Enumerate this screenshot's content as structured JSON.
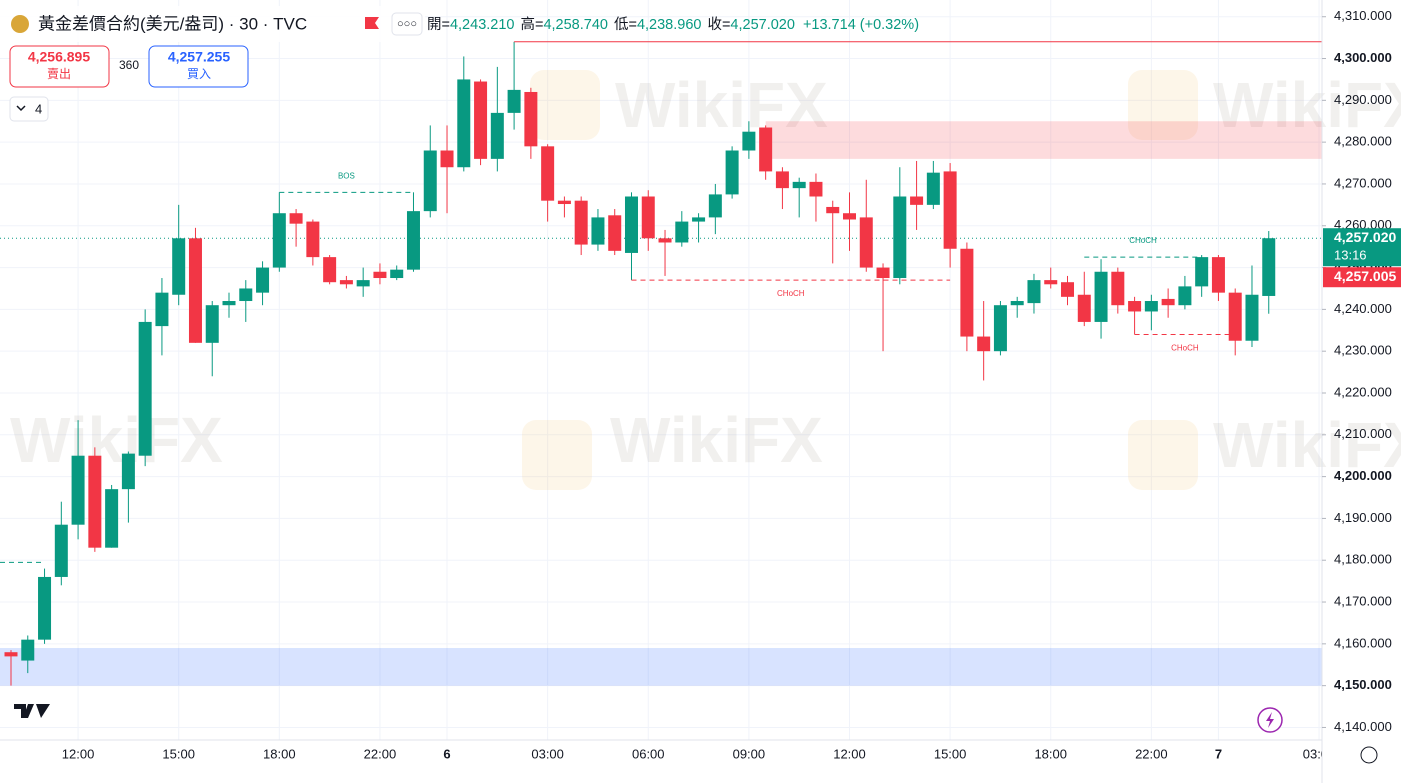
{
  "chart_data": {
    "type": "candlestick",
    "title": "黃金差價合約(美元/盎司) · 30 · TVC",
    "ohlc_header": [
      {
        "label": "開=",
        "value": "4,243.210"
      },
      {
        "label": "高=",
        "value": "4,258.740"
      },
      {
        "label": "低=",
        "value": "4,238.960"
      },
      {
        "label": "收=",
        "value": "4,257.020"
      }
    ],
    "change": "+13.714 (+0.32%)",
    "sell": {
      "price": "4,256.895",
      "label": "賣出"
    },
    "spread": "360",
    "buy": {
      "price": "4,257.255",
      "label": "買入"
    },
    "indicator_count": "4",
    "watermark": "WikiFX",
    "up_color": "#089981",
    "down_color": "#f23645",
    "categories": [
      null,
      null,
      null,
      null,
      "12:00",
      null,
      null,
      null,
      null,
      null,
      "15:00",
      null,
      null,
      null,
      null,
      null,
      "18:00",
      null,
      null,
      null,
      null,
      null,
      "22:00",
      null,
      null,
      null,
      "6",
      null,
      null,
      null,
      null,
      null,
      "03:00",
      null,
      null,
      null,
      null,
      null,
      "06:00",
      null,
      null,
      null,
      null,
      null,
      "09:00",
      null,
      null,
      null,
      null,
      null,
      "12:00",
      null,
      null,
      null,
      null,
      null,
      "15:00",
      null,
      null,
      null,
      null,
      null,
      "18:00",
      null,
      null,
      null,
      null,
      null,
      "22:00",
      null,
      null,
      null,
      "7",
      null,
      null,
      null,
      null,
      null,
      "03:00"
    ],
    "open": [
      4158,
      4156,
      4161,
      4176,
      4188.5,
      4205,
      4183,
      4197,
      4205,
      4236,
      4243.5,
      4257,
      4232,
      4241,
      4242,
      4244,
      4250,
      4263,
      4261,
      4252.5,
      4247,
      4245.5,
      4249,
      4247.5,
      4249.5,
      4263.5,
      4278,
      4274,
      4294.5,
      4276,
      4287,
      4292,
      4279,
      4266,
      4266,
      4255.5,
      4262.5,
      4253.5,
      4267,
      4257,
      4256,
      4261,
      4262,
      4267.5,
      4278,
      4283.5,
      4273,
      4269,
      4270.5,
      4264.5,
      4263,
      4262,
      4250,
      4247.5,
      4267,
      4265,
      4273,
      4254.5,
      4233.5,
      4230,
      4241,
      4241.5,
      4247,
      4246.5,
      4243.5,
      4237,
      4249,
      4242,
      4239.5,
      4242.5,
      4241,
      4245.5,
      4252.5,
      4244,
      4232.5,
      4243.21,
      null,
      null,
      null
    ],
    "high": [
      4158.5,
      4162,
      4178,
      4194,
      4213.5,
      4207,
      4198,
      4206,
      4240,
      4247.5,
      4265,
      4259.5,
      4242,
      4244,
      4247,
      4251.5,
      4268,
      4264,
      4261.5,
      4253,
      4248,
      4250,
      4251,
      4250.5,
      4268,
      4284,
      4284,
      4300.5,
      4295,
      4298,
      4304,
      4293,
      4279.5,
      4267,
      4267,
      4264,
      4264,
      4268,
      4268.5,
      4259,
      4263.5,
      4263,
      4270,
      4279,
      4285,
      4284,
      4274,
      4271.5,
      4272.5,
      4266,
      4268,
      4271,
      4251,
      4274,
      4275.5,
      4275.5,
      4275,
      4256,
      4242,
      4242,
      4243,
      4248.5,
      4250,
      4248,
      4249,
      4252,
      4250,
      4243,
      4243.5,
      4245,
      4248,
      4253,
      4253,
      4245,
      4250.5,
      4258.74,
      null,
      null,
      null
    ],
    "low": [
      4150,
      4153,
      4160,
      4174,
      4185,
      4182,
      4183,
      4189,
      4202.5,
      4229,
      4241,
      4232,
      4224,
      4238,
      4237,
      4241,
      4249,
      4255,
      4250.5,
      4246,
      4245,
      4243,
      4246,
      4247,
      4249,
      4262,
      4263,
      4273,
      4274.5,
      4273,
      4283,
      4276,
      4261,
      4262,
      4253,
      4254,
      4253,
      4247,
      4254,
      4248,
      4255,
      4256,
      4258,
      4266.5,
      4276,
      4271,
      4264,
      4262,
      4261,
      4251,
      4254,
      4249,
      4230,
      4246,
      4259,
      4264,
      4250,
      4230,
      4223,
      4229,
      4238,
      4239,
      4245,
      4241,
      4236,
      4233,
      4239,
      4234,
      4235,
      4238,
      4240,
      4243,
      4242,
      4229,
      4231,
      4238.96,
      null,
      null,
      null
    ],
    "close": [
      4157,
      4161,
      4176,
      4188.5,
      4205,
      4183,
      4197,
      4205.5,
      4237,
      4244,
      4257,
      4232,
      4241,
      4242,
      4245,
      4250,
      4263,
      4260.5,
      4252.5,
      4246.5,
      4246,
      4247,
      4247.5,
      4249.5,
      4263.5,
      4278,
      4274,
      4295,
      4276,
      4287,
      4292.5,
      4279,
      4266,
      4265.2,
      4255.5,
      4262,
      4254,
      4267,
      4257,
      4256,
      4261,
      4262,
      4267.5,
      4278,
      4282.5,
      4273,
      4269,
      4270.5,
      4267,
      4263,
      4261.5,
      4250,
      4247.5,
      4267,
      4265,
      4272.7,
      4254.5,
      4233.5,
      4230,
      4241,
      4242,
      4247,
      4246,
      4243,
      4237,
      4249,
      4241,
      4239.5,
      4242,
      4241,
      4245.5,
      4252.5,
      4244,
      4232.5,
      4243.5,
      4257.02,
      null,
      null,
      null
    ],
    "ylim": [
      4137,
      4314
    ],
    "yticks": [
      {
        "value": 4140,
        "label": "4,140.000"
      },
      {
        "value": 4150,
        "label": "4,150.000"
      },
      {
        "value": 4160,
        "label": "4,160.000"
      },
      {
        "value": 4170,
        "label": "4,170.000"
      },
      {
        "value": 4180,
        "label": "4,180.000"
      },
      {
        "value": 4190,
        "label": "4,190.000"
      },
      {
        "value": 4200,
        "label": "4,200.000"
      },
      {
        "value": 4210,
        "label": "4,210.000"
      },
      {
        "value": 4220,
        "label": "4,220.000"
      },
      {
        "value": 4230,
        "label": "4,230.000"
      },
      {
        "value": 4240,
        "label": "4,240.000"
      },
      {
        "value": 4250,
        "label": "4,250.000"
      },
      {
        "value": 4260,
        "label": "4,260.000"
      },
      {
        "value": 4270,
        "label": "4,270.000"
      },
      {
        "value": 4280,
        "label": "4,280.000"
      },
      {
        "value": 4290,
        "label": "4,290.000"
      },
      {
        "value": 4300,
        "label": "4,300.000"
      },
      {
        "value": 4310,
        "label": "4,310.000"
      }
    ],
    "grid": true,
    "zones": [
      {
        "low": 4276,
        "high": 4285,
        "from": 45,
        "color": "#f23645"
      },
      {
        "low": 4150,
        "high": 4159,
        "from": 0,
        "color": "#2962ff"
      }
    ],
    "levels": [
      {
        "value": 4304,
        "from": 30,
        "color": "#f23645",
        "dashed": false
      },
      {
        "value": 4179.5,
        "from": 0,
        "to": 2,
        "color": "#089981",
        "dashed": true
      },
      {
        "value": 4268,
        "from": 16,
        "to": 24,
        "color": "#089981",
        "dashed": true,
        "label": "BOS",
        "label_side": "above"
      },
      {
        "value": 4247,
        "from": 37,
        "to": 56,
        "color": "#f23645",
        "dashed": true,
        "label": "CHoCH",
        "label_side": "below"
      },
      {
        "value": 4252.5,
        "from": 64,
        "to": 71,
        "color": "#089981",
        "dashed": true,
        "label": "CHoCH",
        "label_side": "above"
      },
      {
        "value": 4234,
        "from": 67,
        "to": 73,
        "color": "#f23645",
        "dashed": true,
        "label": "CHoCH",
        "label_side": "below"
      }
    ],
    "last_price": {
      "value": 4257.02,
      "label": "4,257.020",
      "countdown": "13:16"
    },
    "bid_price": {
      "value": 4257.005,
      "label": "4,257.005"
    }
  }
}
